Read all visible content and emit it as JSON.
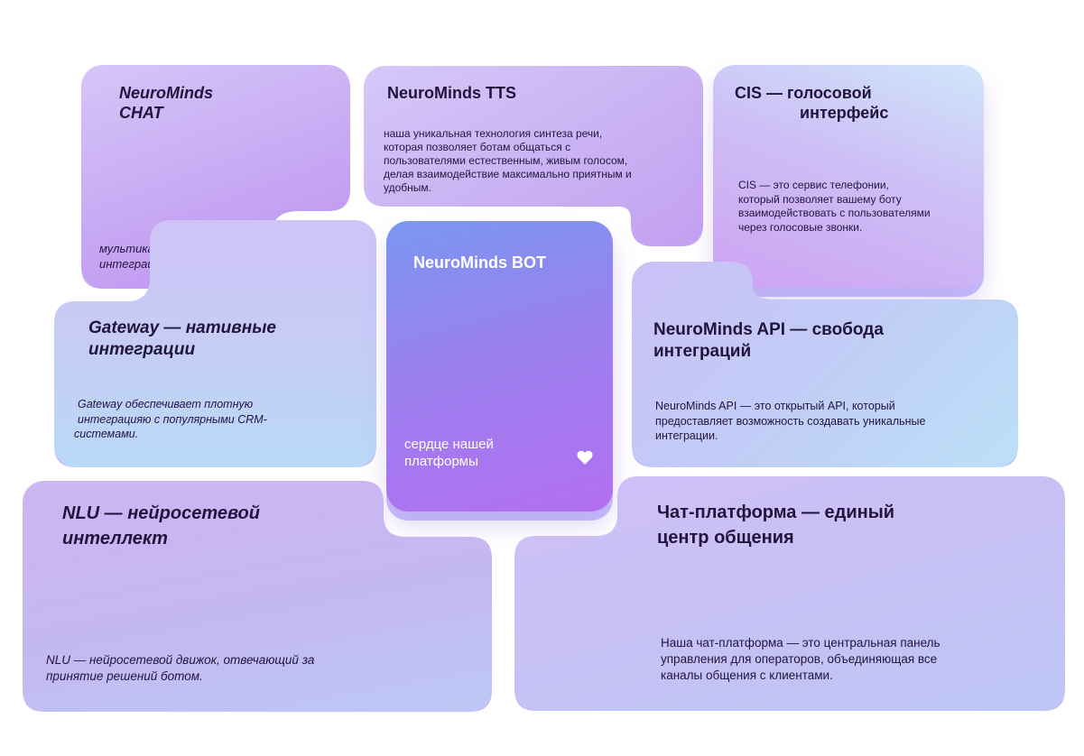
{
  "tiles": {
    "chat": {
      "title_line1": "NeuroMinds",
      "title_line2": "CHAT",
      "desc_line1": "мультиканальная",
      "desc_line2": "интеграция."
    },
    "tts": {
      "title": "NeuroMinds TTS",
      "desc_lines": [
        "наша уникальная технология синтеза речи,",
        "которая позволяет ботам общаться с",
        "пользователями естественным, живым голосом,",
        "делая взаимодействие максимально приятным и",
        "удобным."
      ]
    },
    "cis": {
      "title_line1": "CIS — голосовой",
      "title_line2": "интерфейс",
      "desc_lines": [
        "CIS — это сервис телефонии,",
        "который позволяет вашему боту",
        "взаимодействовать с пользователями",
        "через голосовые звонки."
      ]
    },
    "gateway": {
      "title_line1": "Gateway — нативные",
      "title_line2": "интеграции",
      "desc_lines": [
        "Gateway обеспечивает плотную",
        "интеграцияю с популярными CRM-",
        "системами."
      ]
    },
    "bot": {
      "title": "NeuroMinds BOT",
      "caption_line1": "сердце нашей",
      "caption_line2": "платформы",
      "heart_icon": "heart-icon"
    },
    "api": {
      "title_line1": "NeuroMinds API — свобода",
      "title_line2": "интеграций",
      "desc_lines": [
        "NeuroMinds API — это открытый API, который",
        "предоставляет возможность создавать уникальные",
        "интеграции."
      ]
    },
    "nlu": {
      "title_line1": "NLU — нейросетевой",
      "title_line2": "интеллект",
      "desc_lines": [
        "NLU — нейросетевой движок, отвечающий за",
        "принятие решений ботом."
      ]
    },
    "chatplat": {
      "title_line1": "Чат-платформа — единый",
      "title_line2": "центр общения",
      "desc_lines": [
        "Наша чат-платформа — это центральная панель",
        "управления для операторов, объединяющая все",
        "каналы общения с клиентами."
      ]
    }
  },
  "colors": {
    "text": "#22143c",
    "bot_gradient_top": "#7a97f1",
    "bot_gradient_bottom": "#b36ff0"
  }
}
